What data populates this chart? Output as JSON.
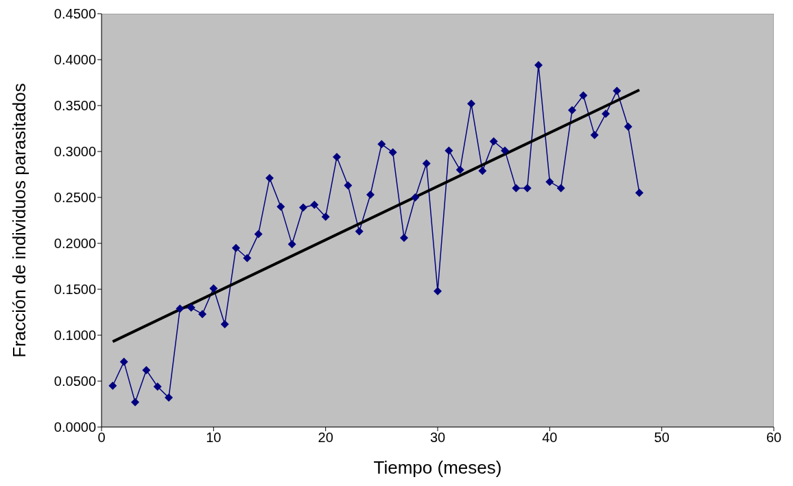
{
  "chart_data": {
    "type": "line",
    "xlabel": "Tiempo (meses)",
    "ylabel": "Fracción de individuos parasitados",
    "xlim": [
      0,
      60
    ],
    "xticks": [
      0,
      10,
      20,
      30,
      40,
      50,
      60
    ],
    "ylim": [
      0,
      0.45
    ],
    "yticks": [
      {
        "value": 0,
        "label": "0.0000"
      },
      {
        "value": 0.05,
        "label": "0.0500"
      },
      {
        "value": 0.1,
        "label": "0.1000"
      },
      {
        "value": 0.15,
        "label": "0.1500"
      },
      {
        "value": 0.2,
        "label": "0.2000"
      },
      {
        "value": 0.25,
        "label": "0.2500"
      },
      {
        "value": 0.3,
        "label": "0.3000"
      },
      {
        "value": 0.35,
        "label": "0.3500"
      },
      {
        "value": 0.4,
        "label": "0.4000"
      },
      {
        "value": 0.45,
        "label": "0.4500"
      }
    ],
    "grid": false,
    "series": [
      {
        "color": "#000080",
        "marker": "diamond",
        "x": [
          1,
          2,
          3,
          4,
          5,
          6,
          7,
          8,
          9,
          10,
          11,
          12,
          13,
          14,
          15,
          16,
          17,
          18,
          19,
          20,
          21,
          22,
          23,
          24,
          25,
          26,
          27,
          28,
          29,
          30,
          31,
          32,
          33,
          34,
          35,
          36,
          37,
          38,
          39,
          40,
          41,
          42,
          43,
          44,
          45,
          46,
          47,
          48
        ],
        "values": [
          0.045,
          0.071,
          0.027,
          0.062,
          0.044,
          0.032,
          0.129,
          0.13,
          0.123,
          0.151,
          0.112,
          0.195,
          0.184,
          0.21,
          0.271,
          0.24,
          0.199,
          0.239,
          0.242,
          0.229,
          0.294,
          0.263,
          0.213,
          0.253,
          0.308,
          0.299,
          0.206,
          0.25,
          0.287,
          0.148,
          0.301,
          0.28,
          0.352,
          0.279,
          0.311,
          0.301,
          0.26,
          0.26,
          0.394,
          0.267,
          0.26,
          0.345,
          0.361,
          0.318,
          0.341,
          0.366,
          0.327,
          0.255
        ]
      },
      {
        "color": "#000000",
        "marker": "none",
        "x": [
          1,
          48
        ],
        "values": [
          0.093,
          0.367
        ]
      }
    ]
  }
}
